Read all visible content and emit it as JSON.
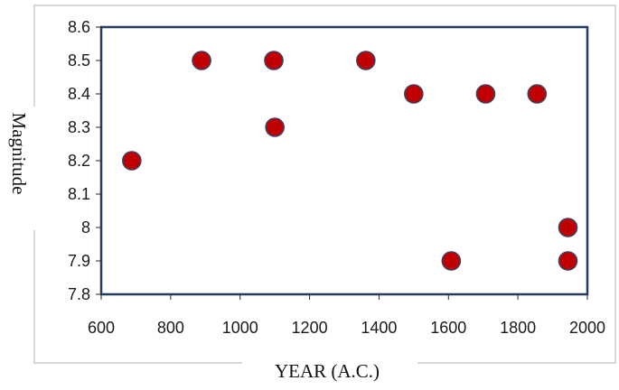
{
  "chart_data": {
    "type": "scatter",
    "title": "",
    "xlabel": "YEAR (A.C.)",
    "ylabel": "Magnitude",
    "xlim": [
      600,
      2000
    ],
    "ylim": [
      7.8,
      8.6
    ],
    "x_ticks": [
      600,
      800,
      1000,
      1200,
      1400,
      1600,
      1800,
      2000
    ],
    "y_ticks": [
      7.8,
      7.9,
      8,
      8.1,
      8.2,
      8.3,
      8.4,
      8.5,
      8.6
    ],
    "x_tick_labels": [
      "600",
      "800",
      "1000",
      "1200",
      "1400",
      "1600",
      "1800",
      "2000"
    ],
    "y_tick_labels": [
      "7.8",
      "7.9",
      "8",
      "8.1",
      "8.2",
      "8.3",
      "8.4",
      "8.5",
      "8.6"
    ],
    "grid": false,
    "legend": "none",
    "points": [
      {
        "x": 688,
        "y": 8.2
      },
      {
        "x": 889,
        "y": 8.5
      },
      {
        "x": 1097,
        "y": 8.5
      },
      {
        "x": 1100,
        "y": 8.3
      },
      {
        "x": 1362,
        "y": 8.5
      },
      {
        "x": 1500,
        "y": 8.4
      },
      {
        "x": 1608,
        "y": 7.9
      },
      {
        "x": 1707,
        "y": 8.4
      },
      {
        "x": 1855,
        "y": 8.4
      },
      {
        "x": 1944,
        "y": 8.0
      },
      {
        "x": 1944,
        "y": 7.9
      }
    ],
    "colors": {
      "marker_fill": "#c00000",
      "marker_edge": "#404060",
      "plot_border": "#243a5e",
      "tick_mark": "#222222",
      "frame_line": "#bfbfbf"
    }
  }
}
